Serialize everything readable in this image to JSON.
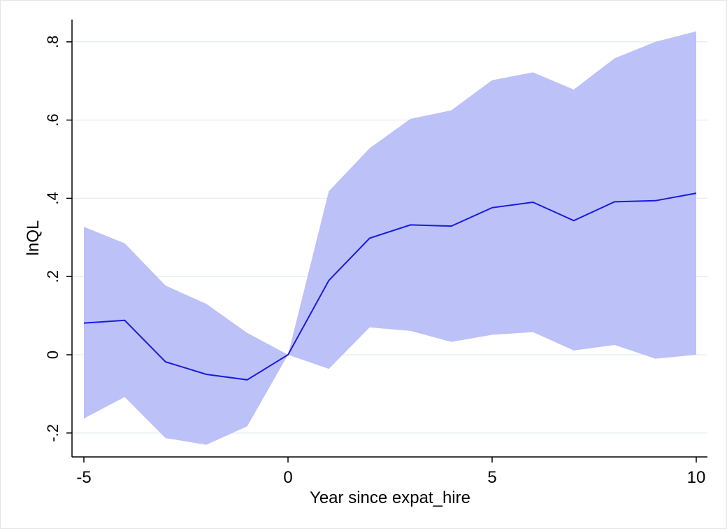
{
  "chart_data": {
    "type": "line",
    "title": "",
    "xlabel": "Year since expat_hire",
    "ylabel": "lnQL",
    "xlim": [
      -5,
      10
    ],
    "ylim": [
      -0.2,
      0.8
    ],
    "x_ticks": [
      -5,
      0,
      5,
      10
    ],
    "x_tick_labels": [
      "-5",
      "0",
      "5",
      "10"
    ],
    "y_ticks": [
      -0.2,
      0,
      0.2,
      0.4,
      0.6,
      0.8
    ],
    "y_tick_labels": [
      "-.2",
      "0",
      ".2",
      ".4",
      ".6",
      ".8"
    ],
    "grid": "horizontal",
    "legend": "none",
    "x": [
      -5,
      -4,
      -3,
      -2,
      -1,
      0,
      1,
      2,
      3,
      4,
      5,
      6,
      7,
      8,
      9,
      10
    ],
    "series": [
      {
        "values": [
          0.081,
          0.088,
          -0.018,
          -0.05,
          -0.064,
          0.0,
          0.19,
          0.298,
          0.332,
          0.329,
          0.376,
          0.39,
          0.343,
          0.391,
          0.394,
          0.413
        ],
        "lower": [
          -0.163,
          -0.108,
          -0.213,
          -0.23,
          -0.183,
          0.0,
          -0.036,
          0.07,
          0.061,
          0.033,
          0.051,
          0.058,
          0.011,
          0.025,
          -0.01,
          0.0
        ],
        "upper": [
          0.327,
          0.285,
          0.177,
          0.13,
          0.056,
          0.0,
          0.418,
          0.528,
          0.603,
          0.625,
          0.702,
          0.722,
          0.678,
          0.758,
          0.8,
          0.827
        ]
      }
    ],
    "colors": {
      "line": "#1a1adb",
      "band": "#bcc1f8",
      "grid": "#e9eff2",
      "axis": "#000000"
    }
  }
}
